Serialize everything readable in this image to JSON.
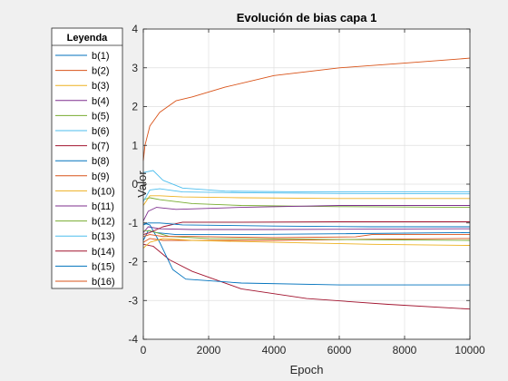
{
  "chart_data": {
    "type": "line",
    "title": "Evolución de bias capa 1",
    "xlabel": "Epoch",
    "ylabel": "Valor",
    "xlim": [
      0,
      10000
    ],
    "ylim": [
      -4,
      4
    ],
    "xticks": [
      0,
      2000,
      4000,
      6000,
      8000,
      10000
    ],
    "yticks": [
      -4,
      -3,
      -2,
      -1,
      0,
      1,
      2,
      3,
      4
    ],
    "grid": true,
    "legend": {
      "title": "Leyenda",
      "placement": "outside-left"
    },
    "series": [
      {
        "name": "b(1)",
        "color": "#0072BD",
        "points": [
          [
            0,
            -1.45
          ],
          [
            150,
            -1.2
          ],
          [
            400,
            -1.25
          ],
          [
            1000,
            -1.3
          ],
          [
            3000,
            -1.3
          ],
          [
            6000,
            -1.28
          ],
          [
            10000,
            -1.25
          ]
        ]
      },
      {
        "name": "b(2)",
        "color": "#D95319",
        "points": [
          [
            0,
            -1.5
          ],
          [
            200,
            -1.4
          ],
          [
            600,
            -1.45
          ],
          [
            1500,
            -1.45
          ],
          [
            4000,
            -1.45
          ],
          [
            7000,
            -1.42
          ],
          [
            10000,
            -1.4
          ]
        ]
      },
      {
        "name": "b(3)",
        "color": "#EDB120",
        "points": [
          [
            0,
            -0.55
          ],
          [
            200,
            -0.3
          ],
          [
            500,
            -0.3
          ],
          [
            1200,
            -0.33
          ],
          [
            3000,
            -0.35
          ],
          [
            6000,
            -0.37
          ],
          [
            10000,
            -0.37
          ]
        ]
      },
      {
        "name": "b(4)",
        "color": "#7E2F8E",
        "points": [
          [
            0,
            -1.25
          ],
          [
            150,
            -1.1
          ],
          [
            500,
            -1.15
          ],
          [
            1500,
            -1.17
          ],
          [
            4000,
            -1.17
          ],
          [
            7000,
            -1.16
          ],
          [
            10000,
            -1.15
          ]
        ]
      },
      {
        "name": "b(5)",
        "color": "#77AC30",
        "points": [
          [
            0,
            -0.4
          ],
          [
            200,
            -0.35
          ],
          [
            500,
            -0.4
          ],
          [
            1500,
            -0.5
          ],
          [
            3000,
            -0.55
          ],
          [
            6000,
            -0.58
          ],
          [
            10000,
            -0.6
          ]
        ]
      },
      {
        "name": "b(6)",
        "color": "#4DBEEE",
        "points": [
          [
            0,
            0.3
          ],
          [
            300,
            0.35
          ],
          [
            600,
            0.1
          ],
          [
            1200,
            -0.1
          ],
          [
            2500,
            -0.18
          ],
          [
            5000,
            -0.2
          ],
          [
            10000,
            -0.2
          ]
        ]
      },
      {
        "name": "b(7)",
        "color": "#A2142F",
        "points": [
          [
            0,
            -1.55
          ],
          [
            300,
            -1.6
          ],
          [
            800,
            -1.95
          ],
          [
            1500,
            -2.25
          ],
          [
            3000,
            -2.7
          ],
          [
            5000,
            -2.95
          ],
          [
            7500,
            -3.1
          ],
          [
            10000,
            -3.22
          ]
        ]
      },
      {
        "name": "b(8)",
        "color": "#0072BD",
        "points": [
          [
            0,
            -1.0
          ],
          [
            200,
            -1.05
          ],
          [
            500,
            -1.5
          ],
          [
            900,
            -2.2
          ],
          [
            1300,
            -2.45
          ],
          [
            3000,
            -2.55
          ],
          [
            6000,
            -2.6
          ],
          [
            10000,
            -2.6
          ]
        ]
      },
      {
        "name": "b(9)",
        "color": "#D95319",
        "points": [
          [
            0,
            0.6
          ],
          [
            50,
            1.0
          ],
          [
            200,
            1.5
          ],
          [
            500,
            1.85
          ],
          [
            1000,
            2.15
          ],
          [
            1500,
            2.25
          ],
          [
            2500,
            2.5
          ],
          [
            4000,
            2.8
          ],
          [
            6000,
            3.0
          ],
          [
            8000,
            3.12
          ],
          [
            10000,
            3.25
          ]
        ]
      },
      {
        "name": "b(10)",
        "color": "#EDB120",
        "points": [
          [
            0,
            -1.65
          ],
          [
            200,
            -1.5
          ],
          [
            600,
            -1.4
          ],
          [
            1500,
            -1.45
          ],
          [
            4000,
            -1.5
          ],
          [
            7000,
            -1.55
          ],
          [
            10000,
            -1.58
          ]
        ]
      },
      {
        "name": "b(11)",
        "color": "#7E2F8E",
        "points": [
          [
            0,
            -0.95
          ],
          [
            150,
            -0.7
          ],
          [
            400,
            -0.6
          ],
          [
            1000,
            -0.65
          ],
          [
            3000,
            -0.6
          ],
          [
            6000,
            -0.55
          ],
          [
            10000,
            -0.55
          ]
        ]
      },
      {
        "name": "b(12)",
        "color": "#77AC30",
        "points": [
          [
            0,
            -1.2
          ],
          [
            200,
            -1.2
          ],
          [
            800,
            -1.35
          ],
          [
            2000,
            -1.4
          ],
          [
            5000,
            -1.42
          ],
          [
            10000,
            -1.45
          ]
        ]
      },
      {
        "name": "b(13)",
        "color": "#4DBEEE",
        "points": [
          [
            0,
            -0.45
          ],
          [
            200,
            -0.15
          ],
          [
            500,
            -0.12
          ],
          [
            1200,
            -0.2
          ],
          [
            3000,
            -0.22
          ],
          [
            6000,
            -0.24
          ],
          [
            10000,
            -0.25
          ]
        ]
      },
      {
        "name": "b(14)",
        "color": "#A2142F",
        "points": [
          [
            0,
            -1.3
          ],
          [
            200,
            -1.25
          ],
          [
            600,
            -1.1
          ],
          [
            1200,
            -0.98
          ],
          [
            3000,
            -0.98
          ],
          [
            6000,
            -0.97
          ],
          [
            10000,
            -0.97
          ]
        ]
      },
      {
        "name": "b(15)",
        "color": "#0072BD",
        "points": [
          [
            0,
            -1.05
          ],
          [
            150,
            -1.0
          ],
          [
            500,
            -1.0
          ],
          [
            1200,
            -1.05
          ],
          [
            4000,
            -1.08
          ],
          [
            7000,
            -1.1
          ],
          [
            10000,
            -1.1
          ]
        ]
      },
      {
        "name": "b(16)",
        "color": "#D95319",
        "points": [
          [
            0,
            -1.35
          ],
          [
            200,
            -1.3
          ],
          [
            600,
            -1.35
          ],
          [
            1500,
            -1.35
          ],
          [
            4000,
            -1.38
          ],
          [
            6500,
            -1.36
          ],
          [
            7000,
            -1.3
          ],
          [
            10000,
            -1.3
          ]
        ]
      }
    ]
  }
}
